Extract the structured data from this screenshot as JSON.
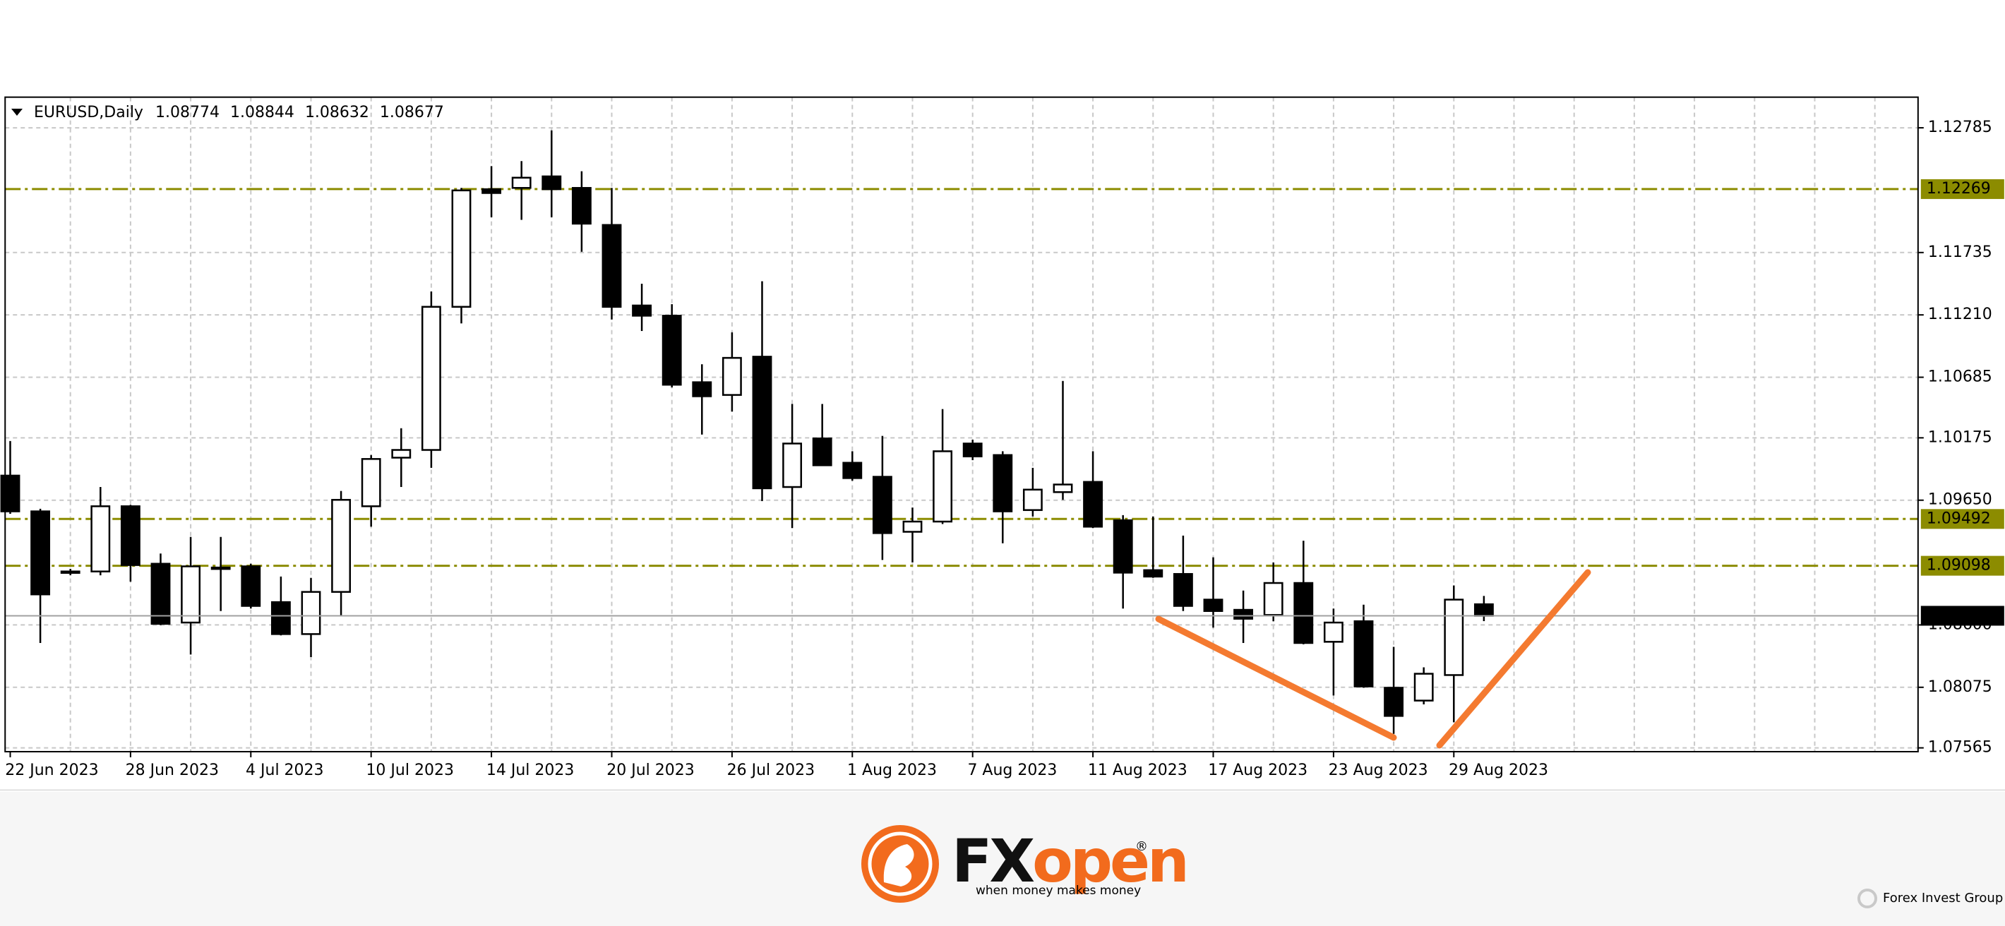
{
  "chart_data": {
    "type": "candlestick",
    "symbol": "EURUSD,Daily",
    "categories": [
      "22 Jun 2023",
      null,
      null,
      null,
      "28 Jun 2023",
      null,
      null,
      null,
      "4 Jul 2023",
      null,
      null,
      null,
      "10 Jul 2023",
      null,
      null,
      null,
      "14 Jul 2023",
      null,
      null,
      null,
      "20 Jul 2023",
      null,
      null,
      null,
      "26 Jul 2023",
      null,
      null,
      null,
      "1 Aug 2023",
      null,
      null,
      null,
      "7 Aug 2023",
      null,
      null,
      null,
      "11 Aug 2023",
      null,
      null,
      null,
      "17 Aug 2023",
      null,
      null,
      null,
      "23 Aug 2023",
      null,
      null,
      null,
      "29 Aug 2023",
      null
    ],
    "open": [
      1.09857,
      1.09556,
      1.0905,
      1.0905,
      1.09599,
      1.09115,
      1.0862,
      1.09083,
      1.09093,
      1.08792,
      1.08523,
      1.08878,
      1.09599,
      1.10008,
      1.10073,
      1.11278,
      1.12268,
      1.12279,
      1.12376,
      1.12279,
      1.11967,
      1.11289,
      1.11203,
      1.10643,
      1.10536,
      1.10858,
      1.09761,
      1.1017,
      1.09965,
      1.09847,
      1.09384,
      1.0947,
      1.10127,
      1.1003,
      1.09567,
      1.09718,
      1.09804,
      1.09481,
      1.09061,
      1.09029,
      1.08813,
      1.08727,
      1.08684,
      1.08953,
      1.08458,
      1.08631,
      1.08071,
      1.07963,
      1.08178,
      1.08774
    ],
    "high": [
      1.10148,
      1.09578,
      1.09072,
      1.09761,
      1.0961,
      1.09201,
      1.09341,
      1.09341,
      1.09115,
      1.09007,
      1.08996,
      1.09728,
      1.1003,
      1.10256,
      1.11407,
      1.12279,
      1.12462,
      1.12505,
      1.12763,
      1.12419,
      1.12279,
      1.11472,
      1.113,
      1.10794,
      1.11063,
      1.11493,
      1.1046,
      1.1046,
      1.10062,
      1.10191,
      1.09588,
      1.10417,
      1.10159,
      1.10062,
      1.09922,
      1.10654,
      1.10062,
      1.09524,
      1.09513,
      1.09352,
      1.09169,
      1.08889,
      1.09126,
      1.09309,
      1.08738,
      1.0877,
      1.08415,
      1.08243,
      1.08932,
      1.08844
    ],
    "low": [
      1.09535,
      1.08448,
      1.09018,
      1.09018,
      1.08964,
      1.08598,
      1.08351,
      1.08717,
      1.08738,
      1.08512,
      1.08329,
      1.08674,
      1.09427,
      1.09761,
      1.09922,
      1.11138,
      1.12032,
      1.1201,
      1.12032,
      1.11741,
      1.11171,
      1.11074,
      1.106,
      1.10202,
      1.10396,
      1.09642,
      1.09416,
      1.09944,
      1.09814,
      1.09147,
      1.09126,
      1.09449,
      1.09987,
      1.09287,
      1.09513,
      1.09653,
      1.09416,
      1.08738,
      1.08996,
      1.08717,
      1.08577,
      1.08448,
      1.08631,
      1.08437,
      1.08006,
      1.08071,
      1.07683,
      1.07931,
      1.0778,
      1.08632
    ],
    "close": [
      1.09556,
      1.08857,
      1.0904,
      1.09599,
      1.09104,
      1.08609,
      1.09093,
      1.09072,
      1.0876,
      1.08523,
      1.08878,
      1.09653,
      1.09997,
      1.10073,
      1.11278,
      1.12258,
      1.12236,
      1.12365,
      1.12268,
      1.11978,
      1.11278,
      1.11203,
      1.10622,
      1.10525,
      1.10848,
      1.0975,
      1.10127,
      1.09944,
      1.09836,
      1.09373,
      1.0947,
      1.10062,
      1.10019,
      1.09556,
      1.09739,
      1.09782,
      1.09427,
      1.0904,
      1.09007,
      1.0876,
      1.08717,
      1.08652,
      1.08953,
      1.08448,
      1.0862,
      1.08082,
      1.07834,
      1.08189,
      1.08813,
      1.08677
    ],
    "ylim": [
      1.07533,
      1.13043
    ],
    "yticks": [
      1.12785,
      1.11735,
      {
        "value": 1.1121,
        "label": "1.11210"
      },
      1.10685,
      1.10175,
      {
        "value": 1.0965,
        "label": "1.09650"
      },
      {
        "value": 1.086,
        "label": "1.08600"
      },
      1.08075,
      1.07565
    ],
    "levels": [
      1.12269,
      1.09492,
      1.09098
    ],
    "level_color": "#8c8c00",
    "grid": true
  },
  "branding": {
    "logo_fx": "FX",
    "logo_open": "open",
    "registered": "®",
    "tagline": "when money makes money",
    "legal": "Forex Invest Group OU"
  }
}
